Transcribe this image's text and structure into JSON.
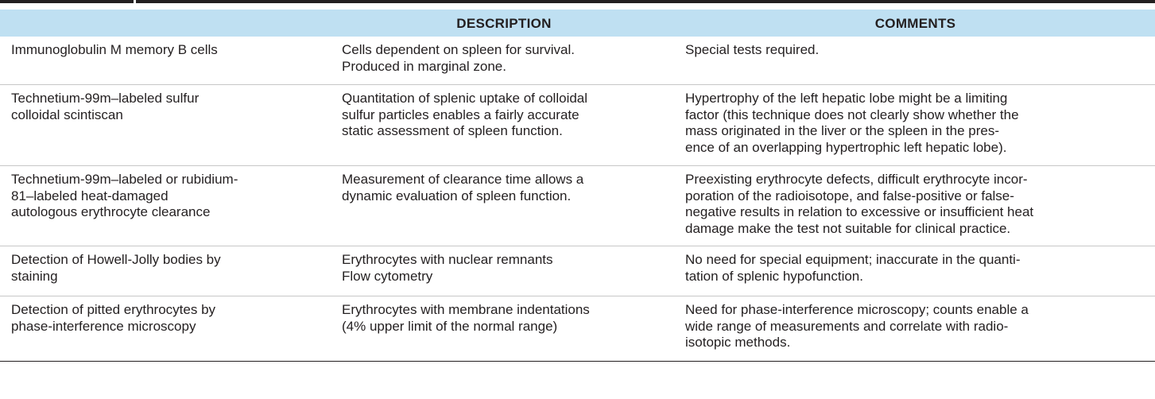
{
  "header": {
    "col_test": "",
    "col_description": "DESCRIPTION",
    "col_comments": "COMMENTS"
  },
  "rows": [
    {
      "test": [
        "Immunoglobulin M memory B cells"
      ],
      "description": [
        "Cells dependent on spleen for survival.",
        "Produced in marginal zone."
      ],
      "comments": [
        "Special tests required."
      ]
    },
    {
      "test": [
        "Technetium-99m–labeled sulfur",
        "colloidal scintiscan"
      ],
      "description": [
        "Quantitation of splenic uptake of colloidal",
        "sulfur particles enables a fairly accurate",
        "static assessment of spleen function."
      ],
      "comments": [
        "Hypertrophy of the left hepatic lobe might be a limiting",
        "factor (this technique does not clearly show whether the",
        "mass originated in the liver or the spleen in the pres-",
        "ence of an overlapping hypertrophic left hepatic lobe)."
      ]
    },
    {
      "test": [
        "Technetium-99m–labeled or rubidium-",
        "81–labeled heat-damaged",
        "autologous erythrocyte clearance"
      ],
      "description": [
        "Measurement of clearance time allows a",
        "dynamic evaluation of spleen function."
      ],
      "comments": [
        "Preexisting erythrocyte defects, difficult erythrocyte incor-",
        "poration of the radioisotope, and false-positive or false-",
        "negative results in relation to excessive or insufficient heat",
        "damage make the test not suitable for clinical practice."
      ]
    },
    {
      "test": [
        "Detection of Howell-Jolly bodies by",
        "staining"
      ],
      "description": [
        "Erythrocytes with nuclear remnants",
        "Flow cytometry"
      ],
      "comments": [
        "No need for special equipment; inaccurate in the quanti-",
        "tation of splenic hypofunction."
      ]
    },
    {
      "test": [
        "Detection of pitted erythrocytes by",
        "phase-interference microscopy"
      ],
      "description": [
        "Erythrocytes with membrane indentations",
        "(4% upper limit of the normal range)"
      ],
      "comments": [
        "Need for phase-interference microscopy; counts enable a",
        "wide range of measurements and correlate with radio-",
        "isotopic methods."
      ]
    }
  ]
}
